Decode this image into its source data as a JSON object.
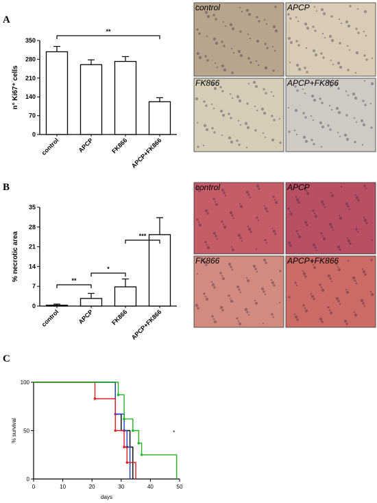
{
  "panels": {
    "a_letter": "A",
    "b_letter": "B",
    "c_letter": "C"
  },
  "images_a": {
    "labels": [
      "control",
      "APCP",
      "FK866",
      "APCP+FK866"
    ],
    "colors": [
      "#b7a58d",
      "#d8ccb6",
      "#d6cdb9",
      "#cfcbc4"
    ]
  },
  "images_b": {
    "labels": [
      "control",
      "APCP",
      "FK866",
      "APCP+FK866"
    ],
    "colors": [
      "#c55c68",
      "#b94f63",
      "#d38a80",
      "#cc6a66"
    ]
  },
  "chart_data": [
    {
      "type": "bar",
      "panel": "A",
      "categories": [
        "control",
        "APCP",
        "FK866",
        "APCP+FK866"
      ],
      "values": [
        308,
        260,
        272,
        122
      ],
      "errors": [
        20,
        18,
        18,
        15
      ],
      "ylabel": "n° Ki67⁺ cells",
      "ylim": [
        0,
        350
      ],
      "yticks": [
        "0",
        "70",
        "140",
        "210",
        "280",
        "350"
      ],
      "annotations": [
        {
          "from": "control",
          "to": "APCP+FK866",
          "label": "**"
        }
      ]
    },
    {
      "type": "bar",
      "panel": "B",
      "categories": [
        "control",
        "APCP",
        "FK866",
        "APCP+FK866"
      ],
      "values": [
        0.3,
        2.7,
        6.8,
        25.3
      ],
      "errors": [
        0.4,
        1.8,
        2.8,
        6.0
      ],
      "ylabel": "% necrotic area",
      "ylim": [
        0,
        35
      ],
      "yticks": [
        "0",
        "7",
        "14",
        "21",
        "28",
        "35"
      ],
      "annotations": [
        {
          "from": "control",
          "to": "APCP",
          "label": "**"
        },
        {
          "from": "APCP",
          "to": "FK866",
          "label": "*"
        },
        {
          "from": "FK866",
          "to": "APCP+FK866",
          "label": "***"
        }
      ]
    },
    {
      "type": "line",
      "panel": "C",
      "xlabel": "days",
      "ylabel": "% survival",
      "xlim": [
        0,
        50
      ],
      "ylim": [
        0,
        100
      ],
      "xticks": [
        "0",
        "10",
        "20",
        "30",
        "40",
        "50"
      ],
      "yticks": [
        "0",
        "50",
        "100"
      ],
      "series": [
        {
          "color": "#000000",
          "steps": [
            [
              0,
              100
            ],
            [
              28,
              100
            ],
            [
              28,
              67
            ],
            [
              30,
              67
            ],
            [
              30,
              50
            ],
            [
              33,
              50
            ],
            [
              33,
              33
            ],
            [
              34,
              33
            ],
            [
              34,
              0
            ]
          ]
        },
        {
          "color": "#1f3fbf",
          "steps": [
            [
              0,
              100
            ],
            [
              28,
              100
            ],
            [
              28,
              67
            ],
            [
              31,
              67
            ],
            [
              31,
              50
            ],
            [
              32,
              50
            ],
            [
              32,
              33
            ],
            [
              33,
              33
            ],
            [
              33,
              0
            ]
          ]
        },
        {
          "color": "#e02020",
          "steps": [
            [
              0,
              100
            ],
            [
              21,
              100
            ],
            [
              21,
              83
            ],
            [
              28,
              83
            ],
            [
              28,
              50
            ],
            [
              31,
              50
            ],
            [
              31,
              33
            ],
            [
              32,
              33
            ],
            [
              32,
              17
            ],
            [
              35,
              17
            ],
            [
              35,
              0
            ]
          ]
        },
        {
          "color": "#22b422",
          "steps": [
            [
              0,
              100
            ],
            [
              29,
              100
            ],
            [
              29,
              87
            ],
            [
              31,
              87
            ],
            [
              31,
              62
            ],
            [
              34,
              62
            ],
            [
              34,
              50
            ],
            [
              36,
              50
            ],
            [
              36,
              37
            ],
            [
              37,
              37
            ],
            [
              37,
              25
            ],
            [
              49,
              25
            ],
            [
              49,
              0
            ]
          ]
        }
      ],
      "annotations": [
        {
          "x": 49,
          "y": 25,
          "label": "*"
        }
      ]
    }
  ]
}
